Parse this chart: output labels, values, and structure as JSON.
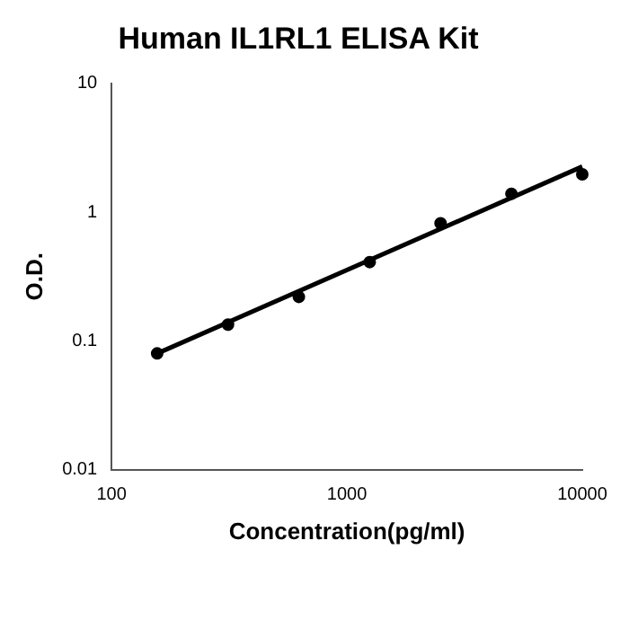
{
  "chart_data": {
    "type": "scatter",
    "title": "Human IL1RL1 ELISA Kit",
    "xlabel": "Concentration(pg/ml)",
    "ylabel": "O.D.",
    "series": [
      {
        "color": "#000000",
        "marker": "circle",
        "x": [
          156.25,
          312.5,
          625,
          1250,
          2500,
          5000,
          10000
        ],
        "values": [
          0.08,
          0.134,
          0.22,
          0.41,
          0.82,
          1.39,
          1.97
        ]
      },
      {
        "type": "line",
        "color": "#000000",
        "marker": "none",
        "line_style": "solid",
        "x": [
          156.25,
          10000
        ],
        "values": [
          0.08,
          2.26
        ]
      }
    ],
    "log": "xy",
    "xlim": [
      100,
      10000
    ],
    "ylim": [
      0.01,
      10
    ],
    "xticks": [
      100,
      1000,
      10000
    ],
    "yticks": [
      0.01,
      0.1,
      1,
      10
    ],
    "grid": false,
    "legend": false
  }
}
